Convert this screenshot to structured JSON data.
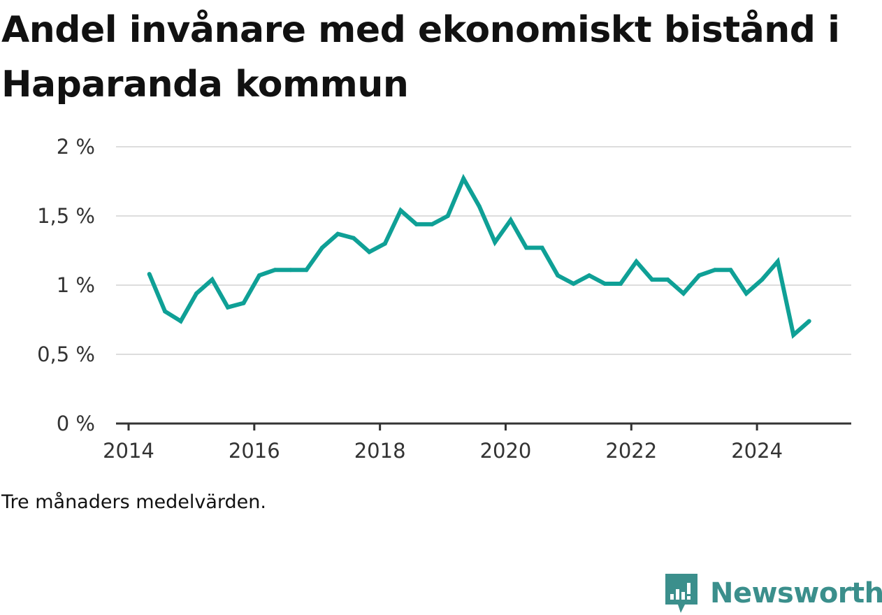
{
  "title": "Andel invånare med ekonomiskt bistånd i Haparanda kommun",
  "caption": "Tre månaders medelvärden.",
  "brand": {
    "name": "Newsworthy",
    "icon": "newsworthy-logo-icon",
    "color": "#3b8f8c"
  },
  "colors": {
    "line": "#0fa096",
    "grid": "#dddddd",
    "axis": "#333333"
  },
  "chart_data": {
    "type": "line",
    "title": "Andel invånare med ekonomiskt bistånd i Haparanda kommun",
    "xlabel": "",
    "ylabel": "",
    "ylim": [
      0,
      2
    ],
    "xlim": [
      2013.8,
      2025.5
    ],
    "grid": true,
    "y_ticks": [
      {
        "value": 0,
        "label": "0 %"
      },
      {
        "value": 0.5,
        "label": "0,5 %"
      },
      {
        "value": 1,
        "label": "1 %"
      },
      {
        "value": 1.5,
        "label": "1,5 %"
      },
      {
        "value": 2,
        "label": "2 %"
      }
    ],
    "x_ticks": [
      {
        "value": 2014,
        "label": "2014"
      },
      {
        "value": 2016,
        "label": "2016"
      },
      {
        "value": 2018,
        "label": "2018"
      },
      {
        "value": 2020,
        "label": "2020"
      },
      {
        "value": 2022,
        "label": "2022"
      },
      {
        "value": 2024,
        "label": "2024"
      }
    ],
    "series": [
      {
        "x": [
          2014.33,
          2014.58,
          2014.83,
          2015.08,
          2015.33,
          2015.58,
          2015.83,
          2016.08,
          2016.33,
          2016.58,
          2016.83,
          2017.08,
          2017.33,
          2017.58,
          2017.83,
          2018.08,
          2018.33,
          2018.58,
          2018.83,
          2019.08,
          2019.33,
          2019.58,
          2019.83,
          2020.08,
          2020.33,
          2020.58,
          2020.83,
          2021.08,
          2021.33,
          2021.58,
          2021.83,
          2022.08,
          2022.33,
          2022.58,
          2022.83,
          2023.08,
          2023.33,
          2023.58,
          2023.83,
          2024.08,
          2024.33,
          2024.58,
          2024.83
        ],
        "y": [
          1.08,
          0.81,
          0.74,
          0.94,
          1.04,
          0.84,
          0.87,
          1.07,
          1.11,
          1.11,
          1.11,
          1.27,
          1.37,
          1.34,
          1.24,
          1.3,
          1.54,
          1.44,
          1.44,
          1.5,
          1.77,
          1.57,
          1.31,
          1.47,
          1.27,
          1.27,
          1.07,
          1.01,
          1.07,
          1.01,
          1.01,
          1.17,
          1.04,
          1.04,
          0.94,
          1.07,
          1.11,
          1.11,
          0.94,
          1.04,
          1.17,
          0.64,
          0.74
        ]
      }
    ]
  }
}
